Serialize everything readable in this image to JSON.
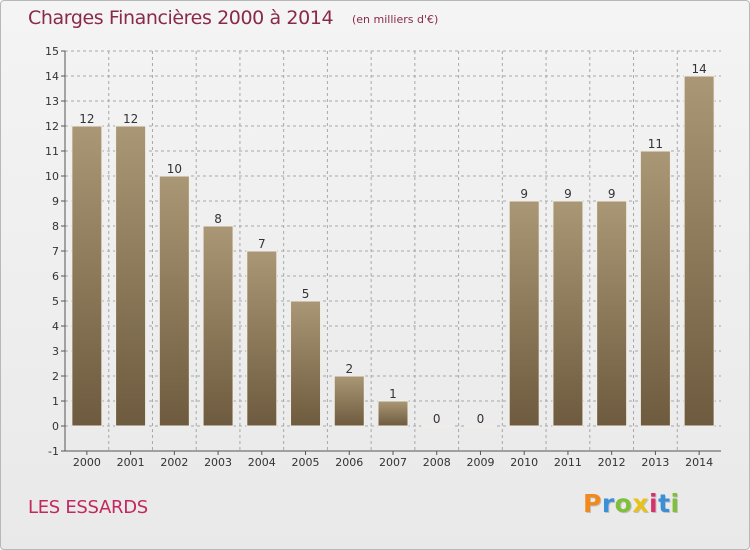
{
  "header": {
    "title": "Charges Financières 2000 à 2014",
    "subtitle": "(en milliers d'€)"
  },
  "footer": {
    "commune": "LES ESSARDS",
    "logo": {
      "letters": [
        "P",
        "r",
        "o",
        "x",
        "i",
        "t",
        "i"
      ],
      "colors": [
        "#f08a1c",
        "#3b8fd6",
        "#7fbf3b",
        "#e8c21a",
        "#d6336c",
        "#3b8fd6",
        "#7fbf3b"
      ]
    }
  },
  "colors": {
    "bar_top": "#a99775",
    "bar_bottom": "#6e5b3f",
    "bar_edge": "#f2eee6",
    "grid": "#a8a8a8",
    "axis": "#555555",
    "text": "#333333"
  },
  "chart_data": {
    "type": "bar",
    "title": "Charges Financières 2000 à 2014",
    "subtitle": "(en milliers d'€)",
    "categories": [
      "2000",
      "2001",
      "2002",
      "2003",
      "2004",
      "2005",
      "2006",
      "2007",
      "2008",
      "2009",
      "2010",
      "2011",
      "2012",
      "2013",
      "2014"
    ],
    "values": [
      12,
      12,
      10,
      8,
      7,
      5,
      2,
      1,
      0,
      0,
      9,
      9,
      9,
      11,
      14
    ],
    "data_labels": [
      "12",
      "12",
      "10",
      "8",
      "7",
      "5",
      "2",
      "1",
      "0",
      "0",
      "9",
      "9",
      "9",
      "11",
      "14"
    ],
    "y_ticks": [
      "-1",
      "0",
      "1",
      "2",
      "3",
      "4",
      "5",
      "6",
      "7",
      "8",
      "9",
      "10",
      "11",
      "12",
      "13",
      "14",
      "15"
    ],
    "ylim": [
      -1,
      15
    ],
    "xlabel": "",
    "ylabel": "",
    "grid": true
  }
}
